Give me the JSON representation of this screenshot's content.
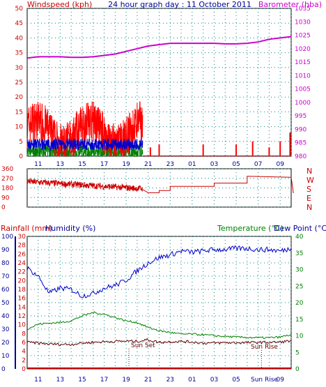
{
  "header": {
    "left": "Windspeed (kph)",
    "center": "24 hour graph day : 11 October 2011",
    "right": "Barometer (hba)"
  },
  "bottom_header": {
    "rainfall": "Rainfall (mm)",
    "humidity": "Humidity (%)",
    "temperature": "Temperature (°C)",
    "dew_point": "Dew Point (°C)"
  },
  "markers": {
    "sun_set": "Sun Set",
    "sun_rise": "Sun Rise"
  },
  "colors": {
    "wind": "#ff0000",
    "gust": "#0000cc",
    "wind_green": "#008000",
    "barometer": "#cc00cc",
    "direction": "#cc0000",
    "humidity": "#0000cc",
    "temperature": "#008000",
    "dew_point": "#660000",
    "rain": "#cc0000",
    "axis_wind": "#cc0000",
    "axis_baro": "#cc00cc",
    "axis_blue": "#000099",
    "axis_green": "#008000",
    "grid": "#008080"
  },
  "chart_data": [
    {
      "type": "line",
      "title": "24 hour graph day : 11 October 2011",
      "x_ticks": [
        "11",
        "13",
        "15",
        "17",
        "19",
        "21",
        "23",
        "01",
        "03",
        "05",
        "07",
        "09"
      ],
      "y_left_ticks": [
        0,
        5,
        10,
        15,
        20,
        25,
        30,
        35,
        40,
        45,
        50
      ],
      "y_left_range": [
        0,
        50
      ],
      "y_right_ticks": [
        980,
        985,
        990,
        995,
        1000,
        1005,
        1010,
        1015,
        1020,
        1025,
        1030,
        1035
      ],
      "y_right_range": [
        980,
        1035
      ],
      "series": [
        {
          "name": "Barometer (hba)",
          "axis": "right",
          "x": [
            10,
            11,
            12,
            13,
            14,
            15,
            16,
            17,
            18,
            19,
            20,
            21,
            22,
            23,
            24,
            25,
            26,
            27,
            28,
            29,
            30,
            31,
            32,
            33,
            34
          ],
          "values": [
            1016.5,
            1017,
            1017,
            1017,
            1016.8,
            1016.8,
            1017,
            1017.5,
            1018,
            1019,
            1020,
            1021,
            1021.5,
            1022,
            1022,
            1022,
            1022,
            1022,
            1021.8,
            1021.8,
            1022,
            1022.5,
            1023.5,
            1024,
            1024.5
          ]
        }
      ],
      "wind_activity_hours": [
        10,
        20.5
      ],
      "wind_peak": 22,
      "grid": true
    },
    {
      "type": "line",
      "name": "wind direction",
      "y_ticks": [
        0,
        90,
        180,
        270,
        360
      ],
      "y_range": [
        0,
        360
      ],
      "compass_labels": [
        "N",
        "W",
        "S",
        "E",
        "N"
      ],
      "series": [
        {
          "name": "direction",
          "x": [
            10,
            12,
            14,
            16,
            17,
            19,
            20.5,
            21,
            22,
            22,
            23,
            23,
            27,
            27,
            30,
            30,
            34,
            34.2
          ],
          "values": [
            240,
            225,
            205,
            190,
            180,
            170,
            165,
            135,
            135,
            155,
            155,
            195,
            195,
            225,
            225,
            290,
            280,
            130
          ]
        }
      ]
    },
    {
      "type": "line",
      "y_humidity_ticks": [
        0,
        10,
        20,
        30,
        40,
        50,
        60,
        70,
        80,
        90,
        100
      ],
      "y_humidity_range": [
        0,
        100
      ],
      "y_rain_ticks": [
        0,
        2,
        4,
        6,
        8,
        10,
        12,
        14,
        16,
        18,
        20,
        22,
        24,
        26,
        28,
        30
      ],
      "y_rain_range": [
        0,
        30
      ],
      "y_temp_ticks": [
        0,
        5,
        10,
        15,
        20,
        25,
        30,
        35,
        40
      ],
      "y_temp_range": [
        0,
        40
      ],
      "sun_set_hour": 19.25,
      "sun_rise_hour": 31.3,
      "series": [
        {
          "name": "Humidity (%)",
          "axis": "humidity",
          "x": [
            10,
            11,
            12,
            13,
            14,
            15,
            16,
            17,
            18,
            19,
            20,
            21,
            22,
            23,
            24,
            25,
            26,
            27,
            28,
            29,
            30,
            31,
            32,
            33,
            34
          ],
          "values": [
            76,
            70,
            57,
            61,
            60,
            55,
            57,
            61,
            63,
            67,
            74,
            80,
            84,
            86,
            89,
            88,
            89,
            90,
            90,
            91,
            91,
            90,
            90,
            89,
            91
          ]
        },
        {
          "name": "Temperature (°C)",
          "axis": "temp",
          "x": [
            10,
            11,
            12,
            13,
            14,
            15,
            16,
            17,
            18,
            19,
            20,
            21,
            22,
            23,
            24,
            25,
            26,
            27,
            28,
            29,
            30,
            31,
            32,
            33,
            34
          ],
          "values": [
            12,
            13.5,
            13.8,
            14,
            14.5,
            16,
            17,
            16.5,
            15.5,
            14.5,
            14,
            12.5,
            11.5,
            11,
            10.5,
            10.5,
            10.3,
            10,
            9.8,
            9.6,
            9.5,
            9.4,
            9.4,
            9.6,
            10.3
          ]
        },
        {
          "name": "Dew Point (°C)",
          "axis": "temp",
          "x": [
            10,
            11,
            12,
            13,
            14,
            15,
            16,
            17,
            18,
            19,
            20,
            21,
            22,
            23,
            24,
            25,
            26,
            27,
            28,
            29,
            30,
            31,
            32,
            33,
            34
          ],
          "values": [
            8,
            7.8,
            7.5,
            7.4,
            7.4,
            7.8,
            8,
            8.2,
            8.3,
            8.4,
            8.3,
            8.8,
            8,
            8.2,
            8.3,
            8.1,
            7.8,
            7.8,
            7.9,
            7.9,
            7.9,
            8,
            8,
            8.1,
            8.5
          ]
        },
        {
          "name": "Rainfall (mm)",
          "axis": "rain",
          "x": [
            10,
            34
          ],
          "values": [
            0,
            0
          ]
        }
      ],
      "grid": true
    }
  ]
}
